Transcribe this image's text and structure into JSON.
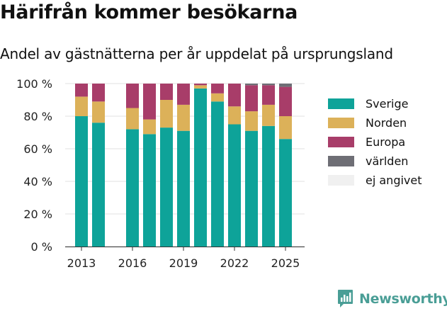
{
  "title": "Härifrån kommer besökarna",
  "subtitle": "Andel av gästnätterna per år uppdelat på ursprungsland",
  "brand": "Newsworthy",
  "brand_color": "#4a9e96",
  "chart_data": {
    "type": "bar",
    "stacked": true,
    "x": [
      2013,
      2014,
      2015,
      2016,
      2017,
      2018,
      2019,
      2020,
      2021,
      2022,
      2023,
      2024,
      2025
    ],
    "xticks": [
      "2013",
      "2016",
      "2019",
      "2022",
      "2025"
    ],
    "yticks": [
      "0 %",
      "20 %",
      "40 %",
      "60 %",
      "80 %",
      "100 %"
    ],
    "ylim": [
      0,
      100
    ],
    "grid": true,
    "legend_position": "right",
    "series": [
      {
        "name": "Sverige",
        "color": "#0ea399",
        "values": [
          80,
          76,
          null,
          72,
          69,
          73,
          71,
          97,
          89,
          75,
          71,
          74,
          66
        ]
      },
      {
        "name": "Norden",
        "color": "#dcb159",
        "values": [
          12,
          13,
          null,
          13,
          9,
          17,
          16,
          2,
          5,
          11,
          12,
          13,
          14
        ]
      },
      {
        "name": "Europa",
        "color": "#a83d69",
        "values": [
          8,
          11,
          null,
          15,
          22,
          10,
          13,
          1,
          6,
          14,
          16,
          12,
          18
        ]
      },
      {
        "name": "världen",
        "color": "#6e6e75",
        "values": [
          0,
          0,
          null,
          0,
          0,
          0,
          0,
          0,
          0,
          0,
          1,
          1,
          2
        ]
      },
      {
        "name": "ej angivet",
        "color": "#f0f0f0",
        "values": [
          0,
          0,
          null,
          0,
          0,
          0,
          0,
          0,
          0,
          0,
          0,
          0,
          0
        ]
      }
    ]
  }
}
